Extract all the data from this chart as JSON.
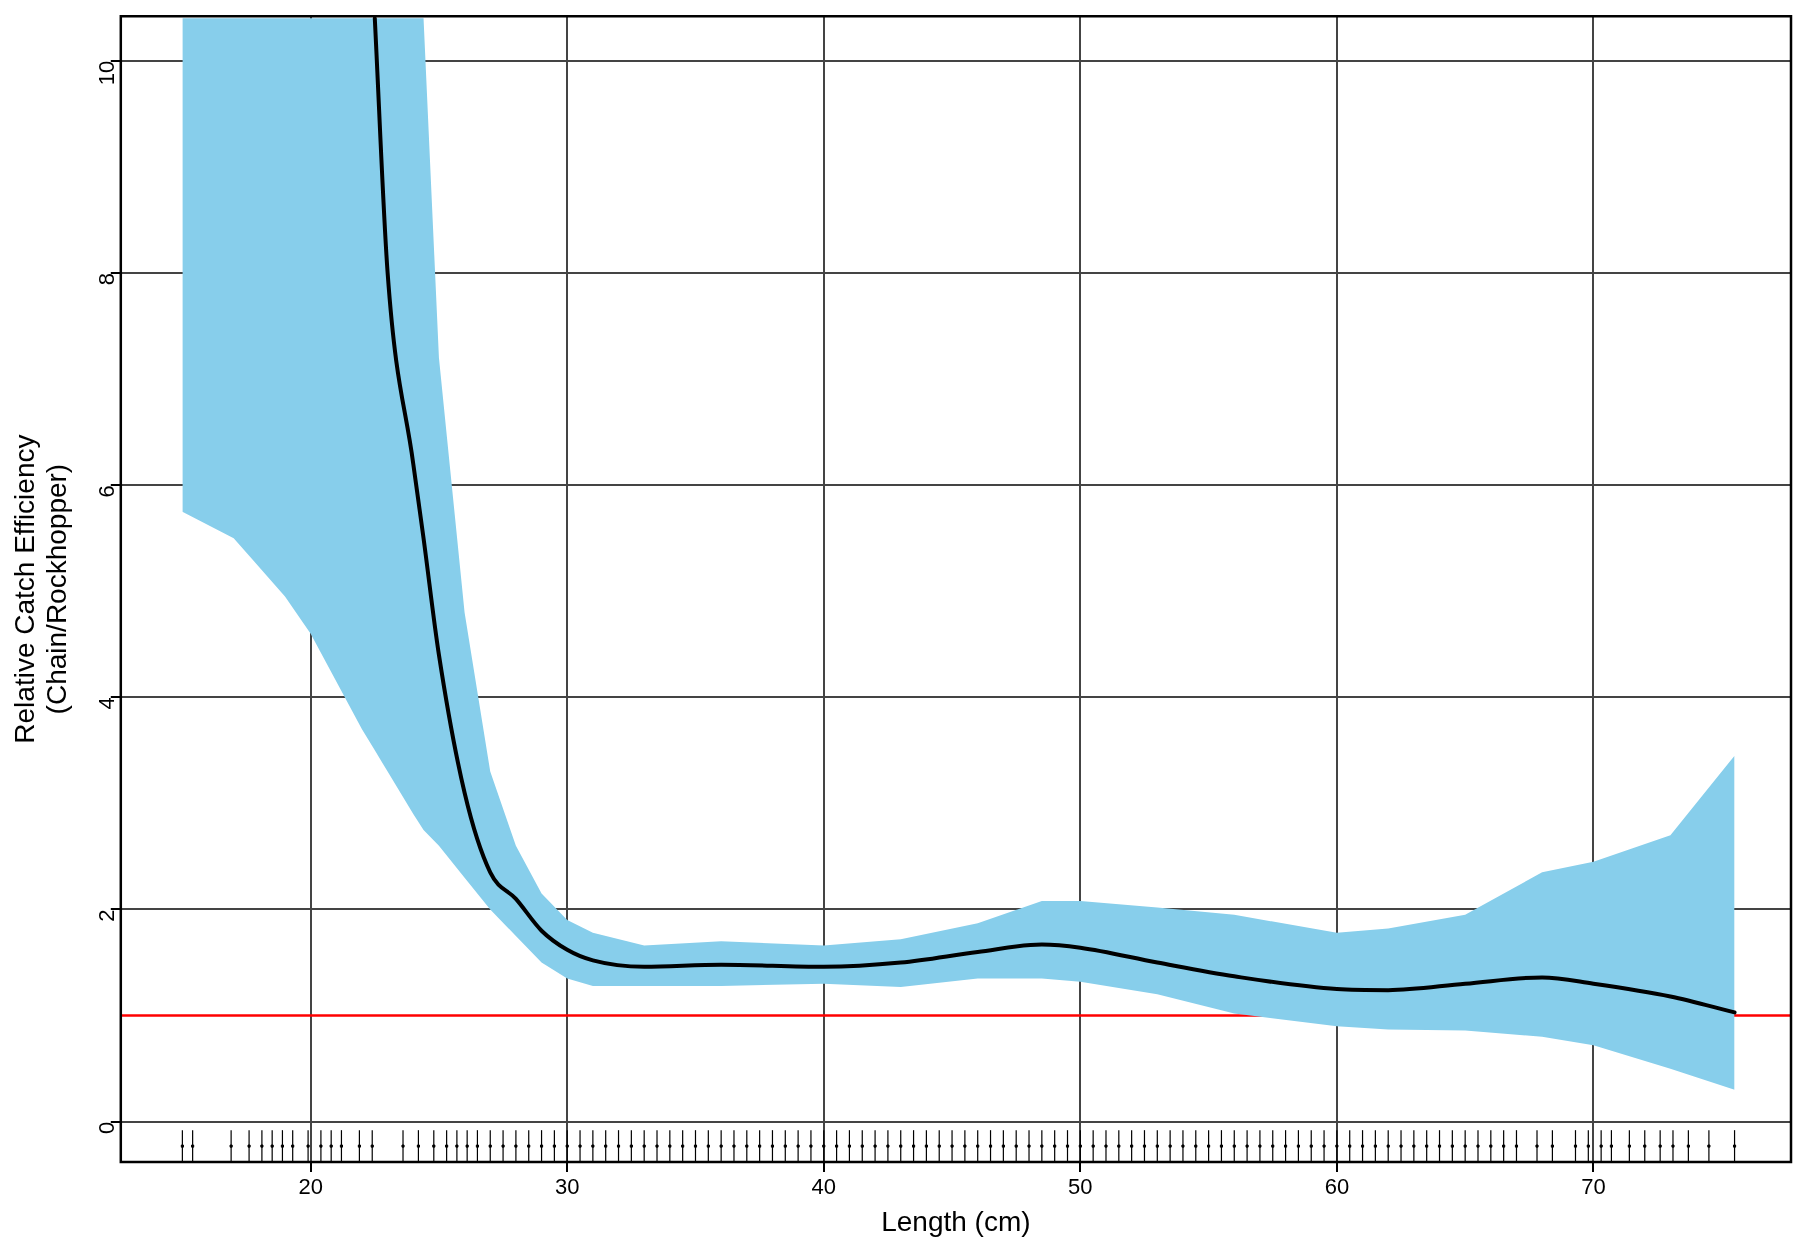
{
  "chart_data": {
    "type": "line",
    "xlabel": "Length (cm)",
    "ylabel": "Relative Catch Efficiency\n(Chain/Rockhopper)",
    "xlim": [
      12.6,
      77.7
    ],
    "xticks": [
      20,
      30,
      40,
      50,
      60,
      70
    ],
    "ylim": [
      -0.38,
      10.42
    ],
    "yticks": [
      0,
      2,
      4,
      6,
      8,
      10
    ],
    "grid": true,
    "legend": false,
    "ref_lines": [
      {
        "axis": "y",
        "value": 1,
        "color": "#ff0000"
      }
    ],
    "series": [
      {
        "color": "#000000",
        "line_style": "solid",
        "marker": "none",
        "x": [
          15,
          17,
          19,
          20,
          22,
          22.5,
          23,
          24,
          24.4,
          25,
          26,
          27,
          28,
          29,
          30,
          31,
          33,
          36,
          40,
          43,
          46,
          48.5,
          50,
          53,
          56,
          60,
          62,
          65,
          68,
          70,
          73,
          75.5
        ],
        "values": [
          null,
          null,
          null,
          null,
          null,
          10.4,
          8.0,
          6.2,
          5.5,
          4.4,
          3.1,
          2.35,
          2.1,
          1.8,
          1.62,
          1.52,
          1.46,
          1.48,
          1.46,
          1.5,
          1.6,
          1.67,
          1.64,
          1.5,
          1.37,
          1.25,
          1.24,
          1.3,
          1.36,
          1.3,
          1.18,
          1.03
        ],
        "lower": [
          5.75,
          5.5,
          4.95,
          4.6,
          3.7,
          3.5,
          3.3,
          2.9,
          2.75,
          2.6,
          2.3,
          2.0,
          1.75,
          1.5,
          1.35,
          1.28,
          1.28,
          1.28,
          1.3,
          1.27,
          1.35,
          1.35,
          1.32,
          1.2,
          1.02,
          0.9,
          0.87,
          0.86,
          0.8,
          0.72,
          0.5,
          0.3
        ],
        "upper": [
          10.4,
          10.4,
          10.4,
          10.4,
          10.4,
          10.4,
          10.4,
          10.4,
          10.4,
          7.2,
          4.8,
          3.3,
          2.6,
          2.15,
          1.9,
          1.78,
          1.66,
          1.7,
          1.66,
          1.72,
          1.87,
          2.08,
          2.08,
          2.02,
          1.95,
          1.78,
          1.82,
          1.95,
          2.35,
          2.45,
          2.7,
          3.45
        ]
      },
      {
        "type": "scatter",
        "color": "#000000",
        "marker": "square",
        "errors": [
          0.15,
          0.15,
          0.15,
          0.15,
          0.15,
          0.15,
          0.15,
          0.15,
          0.15,
          0.15,
          0.15,
          0.15,
          0.15,
          0.15,
          0.15,
          0.15,
          0.15,
          0.15,
          0.15,
          0.15,
          0.15,
          0.15,
          0.15,
          0.15,
          0.15,
          0.15,
          0.15,
          0.15,
          0.15,
          0.15,
          0.15,
          0.15,
          0.15,
          0.15,
          0.15,
          0.15,
          0.15,
          0.15,
          0.15,
          0.15,
          0.15,
          0.15,
          0.15,
          0.15,
          0.15,
          0.15,
          0.15,
          0.15,
          0.15,
          0.15,
          0.15,
          0.15,
          0.15,
          0.15,
          0.15,
          0.15,
          0.15,
          0.15,
          0.15,
          0.15,
          0.15,
          0.15,
          0.15,
          0.15,
          0.15,
          0.15,
          0.15,
          0.15,
          0.15,
          0.15,
          0.15,
          0.15,
          0.15,
          0.15,
          0.15,
          0.15,
          0.15,
          0.15,
          0.15,
          0.15,
          0.15,
          0.15,
          0.15,
          0.15,
          0.15,
          0.15,
          0.15,
          0.15,
          0.15,
          0.15,
          0.15,
          0.15,
          0.15,
          0.15,
          0.15,
          0.15,
          0.15,
          0.15,
          0.15,
          0.15,
          0.15,
          0.15,
          0.15,
          0.15,
          0.15,
          0.15,
          0.15,
          0.15,
          0.15,
          0.15,
          0.15,
          0.15,
          0.15,
          0.15,
          0.15
        ],
        "x": [
          15.0,
          15.4,
          16.9,
          17.6,
          18.1,
          18.5,
          18.9,
          19.3,
          19.9,
          20.4,
          20.8,
          21.2,
          21.9,
          22.4,
          23.6,
          24.2,
          24.8,
          25.3,
          25.7,
          26.1,
          26.5,
          27,
          27.5,
          28,
          28.5,
          29,
          29.5,
          30,
          30.5,
          31,
          31.5,
          32,
          32.5,
          33,
          33.5,
          34,
          34.5,
          35,
          35.5,
          36,
          36.5,
          37,
          37.5,
          38,
          38.5,
          39,
          39.5,
          40,
          40.5,
          41,
          41.5,
          42,
          42.5,
          43,
          43.5,
          44,
          44.5,
          45,
          45.5,
          46,
          46.5,
          47,
          47.5,
          48,
          48.5,
          49,
          49.5,
          50,
          50.5,
          51,
          51.5,
          52,
          52.5,
          53,
          53.5,
          54,
          54.5,
          55,
          55.5,
          56,
          56.5,
          57,
          57.5,
          58,
          58.5,
          59,
          59.5,
          60,
          60.5,
          61,
          61.5,
          62,
          62.5,
          63,
          63.5,
          64,
          64.5,
          65,
          65.5,
          66,
          66.5,
          67.0,
          67.8,
          68.4,
          69.3,
          69.8,
          70.3,
          70.7,
          71.4,
          72.0,
          72.6,
          73.1,
          73.7,
          74.5,
          75.5
        ],
        "values": [
          -0.23,
          -0.23,
          -0.23,
          -0.23,
          -0.23,
          -0.23,
          -0.23,
          -0.23,
          -0.23,
          -0.23,
          -0.23,
          -0.23,
          -0.23,
          -0.23,
          -0.23,
          -0.23,
          -0.23,
          -0.23,
          -0.23,
          -0.23,
          -0.23,
          -0.23,
          -0.23,
          -0.23,
          -0.23,
          -0.23,
          -0.23,
          -0.23,
          -0.23,
          -0.23,
          -0.23,
          -0.23,
          -0.23,
          -0.23,
          -0.23,
          -0.23,
          -0.23,
          -0.23,
          -0.23,
          -0.23,
          -0.23,
          -0.23,
          -0.23,
          -0.23,
          -0.23,
          -0.23,
          -0.23,
          -0.23,
          -0.23,
          -0.23,
          -0.23,
          -0.23,
          -0.23,
          -0.23,
          -0.23,
          -0.23,
          -0.23,
          -0.23,
          -0.23,
          -0.23,
          -0.23,
          -0.23,
          -0.23,
          -0.23,
          -0.23,
          -0.23,
          -0.23,
          -0.23,
          -0.23,
          -0.23,
          -0.23,
          -0.23,
          -0.23,
          -0.23,
          -0.23,
          -0.23,
          -0.23,
          -0.23,
          -0.23,
          -0.23,
          -0.23,
          -0.23,
          -0.23,
          -0.23,
          -0.23,
          -0.23,
          -0.23,
          -0.23,
          -0.23,
          -0.23,
          -0.23,
          -0.23,
          -0.23,
          -0.23,
          -0.23,
          -0.23,
          -0.23,
          -0.23,
          -0.23,
          -0.23,
          -0.23,
          -0.23,
          -0.23,
          -0.23,
          -0.23,
          -0.23,
          -0.23,
          -0.23,
          -0.23,
          -0.23,
          -0.23,
          -0.23,
          -0.23,
          -0.23,
          -0.23
        ]
      }
    ]
  }
}
